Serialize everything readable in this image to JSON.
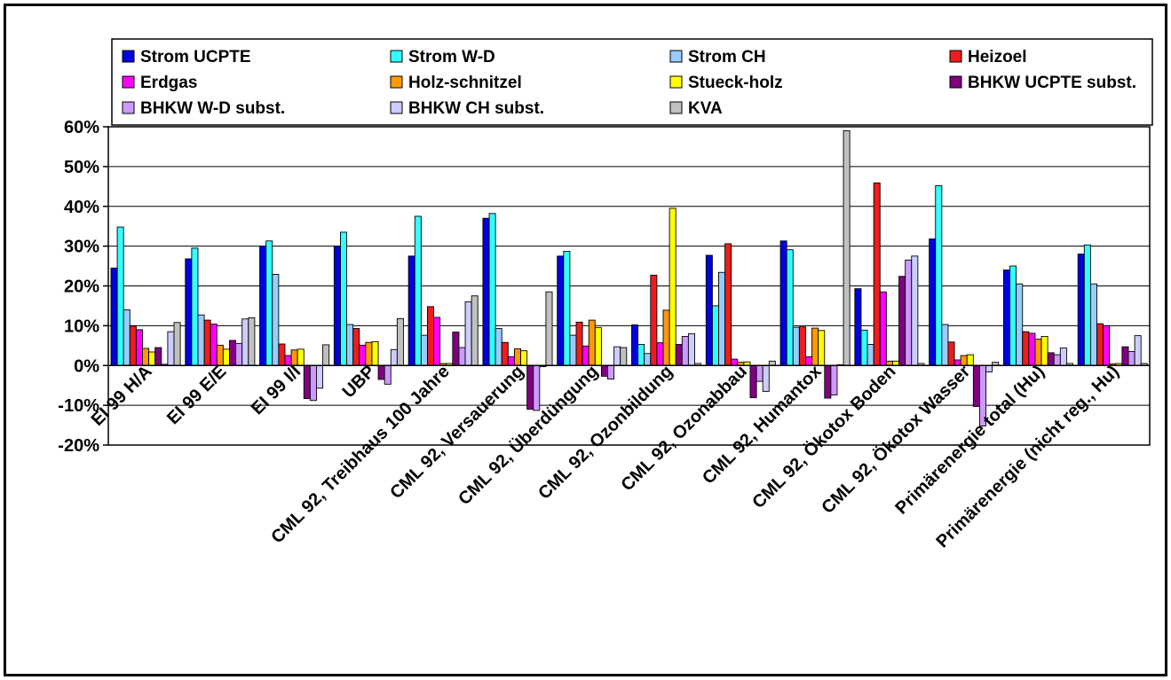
{
  "chart_data": {
    "type": "bar",
    "title": "",
    "xlabel": "",
    "ylabel": "",
    "ylim": [
      -20,
      60
    ],
    "ytick_step": 10,
    "ytick_labels": [
      "-20%",
      "-10%",
      "0%",
      "10%",
      "20%",
      "30%",
      "40%",
      "50%",
      "60%"
    ],
    "grid": true,
    "legend_position": "top",
    "categories": [
      "EI 99 H/A",
      "EI 99 E/E",
      "EI 99 I/I",
      "UBP",
      "CML 92, Treibhaus 100 Jahre",
      "CML 92, Versauerung",
      "CML 92, Überdüngung",
      "CML 92, Ozonbildung",
      "CML 92, Ozonabbau",
      "CML 92, Humantox",
      "CML 92, Ökotox Boden",
      "CML 92, Ökotox Wasser",
      "Primärenergie total (Hu)",
      "Primärenergie (nicht reg., Hu)"
    ],
    "series": [
      {
        "name": "Strom UCPTE",
        "color": "#0000e0",
        "values": [
          24.5,
          26.8,
          30.0,
          30.0,
          27.5,
          37.0,
          27.5,
          10.2,
          27.7,
          31.3,
          19.3,
          31.8,
          24.0,
          28.0
        ]
      },
      {
        "name": "Strom W-D",
        "color": "#33ffff",
        "values": [
          34.8,
          29.5,
          31.3,
          33.5,
          37.5,
          38.2,
          28.7,
          5.3,
          15.0,
          29.1,
          8.9,
          45.2,
          25.0,
          30.3
        ]
      },
      {
        "name": "Strom CH",
        "color": "#99ccff",
        "values": [
          14.0,
          12.7,
          22.9,
          10.3,
          7.6,
          9.3,
          7.6,
          3.0,
          23.4,
          9.6,
          5.3,
          10.3,
          20.5,
          20.5
        ]
      },
      {
        "name": "Heizoel",
        "color": "#ee1c1c",
        "values": [
          9.9,
          11.4,
          5.4,
          9.3,
          14.8,
          5.8,
          10.9,
          22.7,
          30.6,
          9.7,
          45.9,
          5.9,
          8.5,
          10.5
        ]
      },
      {
        "name": "Erdgas",
        "color": "#ff00ff",
        "values": [
          9.0,
          10.4,
          2.5,
          5.1,
          12.1,
          2.2,
          4.9,
          5.7,
          1.6,
          2.2,
          18.5,
          1.4,
          8.1,
          10.0
        ]
      },
      {
        "name": "Holz-schnitzel",
        "color": "#ff9900",
        "values": [
          4.3,
          5.1,
          3.9,
          5.8,
          0.5,
          4.2,
          11.4,
          13.9,
          0.8,
          9.4,
          1.1,
          2.5,
          6.6,
          0.4
        ]
      },
      {
        "name": "Stueck-holz",
        "color": "#ffff00",
        "values": [
          3.4,
          4.1,
          4.1,
          6.0,
          0.5,
          3.7,
          9.5,
          39.5,
          0.9,
          8.8,
          1.1,
          2.7,
          7.3,
          0.5
        ]
      },
      {
        "name": "BHKW UCPTE subst.",
        "color": "#800080",
        "values": [
          4.5,
          6.3,
          -8.3,
          -3.5,
          8.4,
          -11.0,
          -2.7,
          5.3,
          -8.1,
          -8.2,
          22.4,
          -10.3,
          3.2,
          4.7
        ]
      },
      {
        "name": "BHKW W-D subst.",
        "color": "#cc99ff",
        "values": [
          0.3,
          5.5,
          -8.8,
          -4.7,
          4.5,
          -11.3,
          -3.4,
          7.3,
          -4.0,
          -7.4,
          26.5,
          -15.2,
          2.7,
          3.5
        ]
      },
      {
        "name": "BHKW CH subst.",
        "color": "#ccccff",
        "values": [
          8.5,
          11.7,
          -5.7,
          4.0,
          16.0,
          -0.3,
          4.7,
          8.0,
          -6.5,
          0.2,
          27.5,
          -1.6,
          4.4,
          7.5
        ]
      },
      {
        "name": "KVA",
        "color": "#c0c0c0",
        "values": [
          10.8,
          12.0,
          5.2,
          11.8,
          17.5,
          18.5,
          4.5,
          0.5,
          1.1,
          59.0,
          0.5,
          0.8,
          0.5,
          0.5
        ]
      }
    ]
  }
}
